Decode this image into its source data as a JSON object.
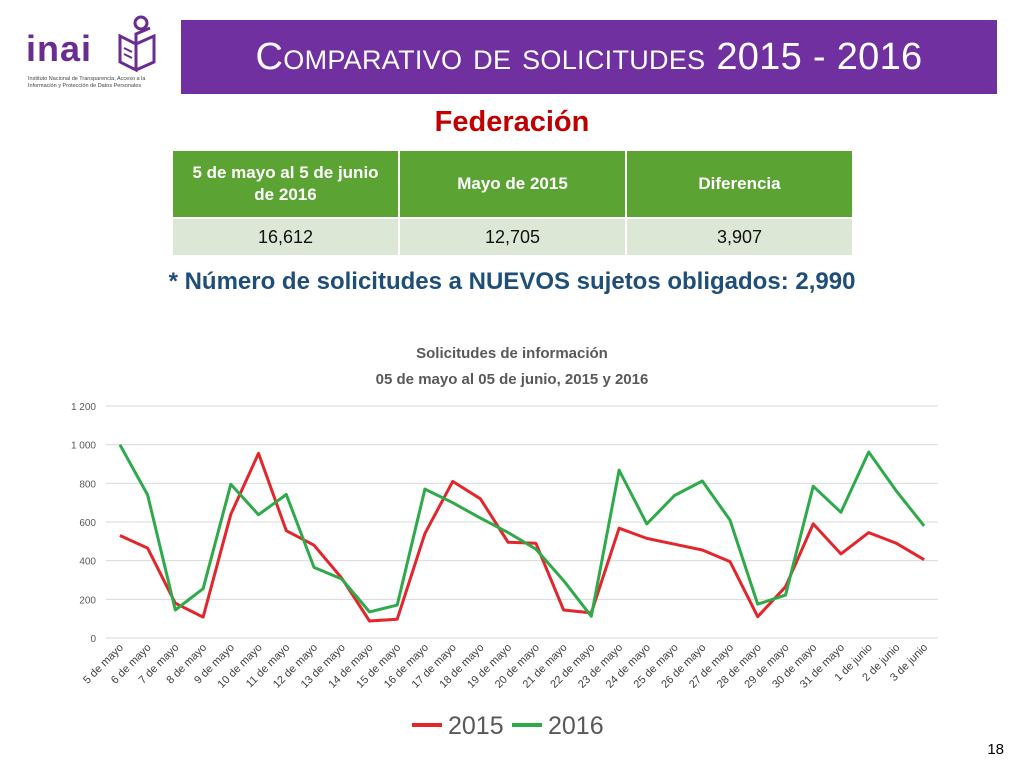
{
  "logo": {
    "wordmark": "inai",
    "caption": "Instituto Nacional de Transparencia, Acceso a la Información y Protección de Datos Personales"
  },
  "header": {
    "title_prefix": "Comparativo de solicitudes",
    "title_years": "2015 - 2016"
  },
  "subtitle": "Federación",
  "summary_table": {
    "headers": [
      "5 de mayo al 5 de junio de 2016",
      "Mayo de 2015",
      "Diferencia"
    ],
    "values": [
      "16,612",
      "12,705",
      "3,907"
    ]
  },
  "note": "* Número de solicitudes a NUEVOS sujetos obligados: 2,990",
  "page_number": "18",
  "colors": {
    "banner": "#7030a0",
    "table_header": "#5ba333",
    "table_cell": "#dce8d5",
    "series_2015": "#e3262b",
    "series_2016": "#2eaa4a",
    "subtitle": "#c00000",
    "note": "#1f4e79"
  },
  "chart_data": {
    "type": "line",
    "title": "Solicitudes de información",
    "subtitle": "05 de mayo al 05 de junio, 2015 y 2016",
    "ylim": [
      0,
      1200
    ],
    "yticks": [
      0,
      200,
      400,
      600,
      800,
      1000,
      1200
    ],
    "ytick_labels": [
      "0",
      "200",
      "400",
      "600",
      "800",
      "1 000",
      "1 200"
    ],
    "grid": true,
    "legend": "bottom",
    "categories": [
      "5 de mayo",
      "6 de mayo",
      "7 de mayo",
      "8 de mayo",
      "9 de mayo",
      "10 de mayo",
      "11 de mayo",
      "12 de mayo",
      "13 de mayo",
      "14 de mayo",
      "15 de mayo",
      "16 de mayo",
      "17 de mayo",
      "18 de mayo",
      "19 de mayo",
      "20 de mayo",
      "21 de mayo",
      "22 de mayo",
      "23 de mayo",
      "24 de mayo",
      "25 de mayo",
      "26 de mayo",
      "27 de mayo",
      "28 de mayo",
      "29 de mayo",
      "30 de mayo",
      "31 de mayo",
      "1 de junio",
      "2 de junio",
      "3 de junio"
    ],
    "series": [
      {
        "name": "2015",
        "values": [
          530,
          465,
          180,
          108,
          640,
          955,
          555,
          480,
          310,
          88,
          97,
          540,
          810,
          720,
          495,
          490,
          145,
          130,
          568,
          515,
          485,
          455,
          395,
          110,
          265,
          590,
          435,
          545,
          490,
          405
        ]
      },
      {
        "name": "2016",
        "values": [
          1000,
          740,
          145,
          255,
          795,
          638,
          742,
          365,
          305,
          135,
          170,
          770,
          700,
          620,
          545,
          460,
          297,
          112,
          868,
          590,
          737,
          812,
          610,
          175,
          222,
          785,
          650,
          962,
          760,
          580
        ]
      }
    ]
  }
}
